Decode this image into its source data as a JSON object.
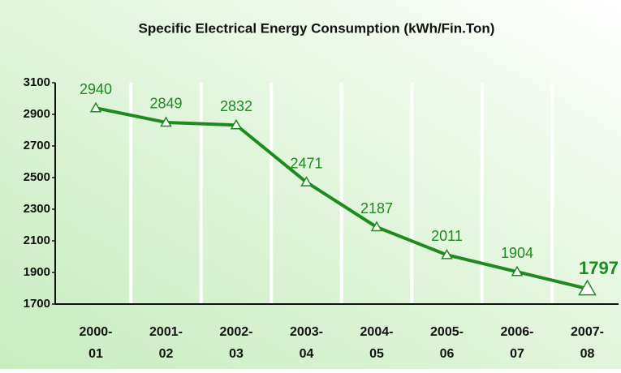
{
  "chart_data": {
    "type": "line",
    "title": "Specific Electrical Energy Consumption (kWh/Fin.Ton)",
    "categories": [
      "2000-01",
      "2001-02",
      "2002-03",
      "2003-04",
      "2004-05",
      "2005-06",
      "2006-07",
      "2007-08"
    ],
    "series": [
      {
        "name": "Specific Electrical Energy Consumption",
        "color": "#1f8a1f",
        "values": [
          2940,
          2849,
          2832,
          2471,
          2187,
          2011,
          1904,
          1797
        ]
      }
    ],
    "ylim": [
      1700,
      3100
    ],
    "yticks": [
      1700,
      1900,
      2100,
      2300,
      2500,
      2700,
      2900,
      3100
    ],
    "grid": true
  }
}
